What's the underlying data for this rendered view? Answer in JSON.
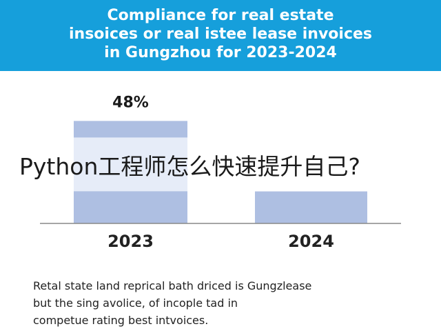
{
  "header": {
    "title_lines": [
      "Compliance for real estate",
      "insoices or real istee lease invoices",
      "in Gungzhou for 2023-2024"
    ]
  },
  "overlay": {
    "text": "Python工程师怎么快速提升自己?"
  },
  "caption": {
    "lines": [
      "Retal state land reprical bath driced is Gungzlease",
      "but the sing avolice, of incople tad in",
      "competue rating best intvoices."
    ]
  },
  "colors": {
    "header_bg": "#169fdb",
    "bar": "#aebfe2",
    "bar_highlight": "#e6ecf8",
    "axis": "#888888"
  },
  "chart_data": {
    "type": "bar",
    "title": "Compliance for real estate insoices or real istee lease invoices in Gungzhou for 2023-2024",
    "categories": [
      "2023",
      "2024"
    ],
    "values": [
      48,
      15
    ],
    "value_labels": [
      "48%",
      ""
    ],
    "xlabel": "",
    "ylabel": "",
    "ylim": [
      0,
      52
    ],
    "grid": false
  }
}
